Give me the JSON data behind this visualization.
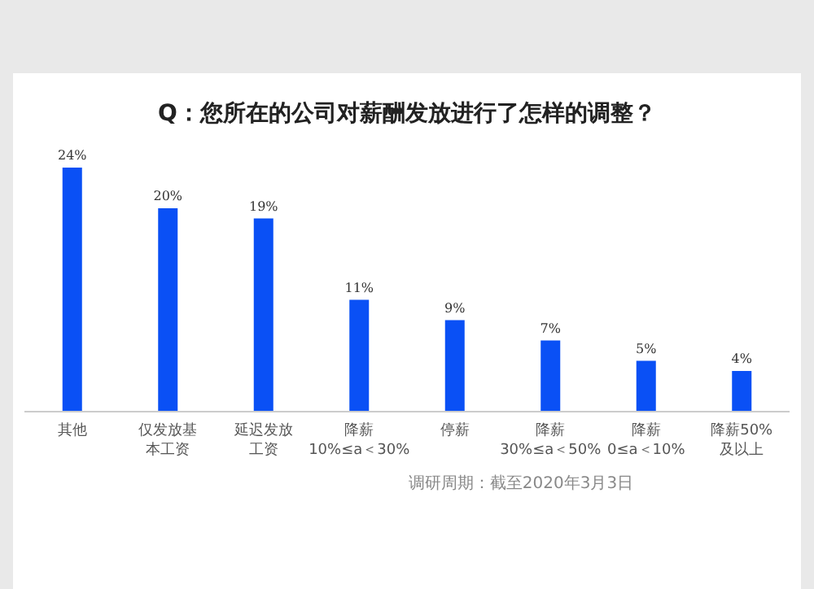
{
  "chart_data": {
    "type": "bar",
    "title": "Q：您所在的公司对薪酬发放进行了怎样的调整？",
    "categories": [
      "其他",
      "仅发放基本工资",
      "延迟发放工资",
      "降薪\n10%≤a＜30%",
      "停薪",
      "降薪\n30%≤a＜50%",
      "降薪\n0≤a＜10%",
      "降薪50%\n及以上"
    ],
    "values": [
      24,
      20,
      19,
      11,
      9,
      7,
      5,
      4
    ],
    "value_labels": [
      "24%",
      "20%",
      "19%",
      "11%",
      "9%",
      "7%",
      "5%",
      "4%"
    ],
    "color": "#0a50f5",
    "annotations": [
      "调研周期：截至2020年3月3日"
    ]
  }
}
